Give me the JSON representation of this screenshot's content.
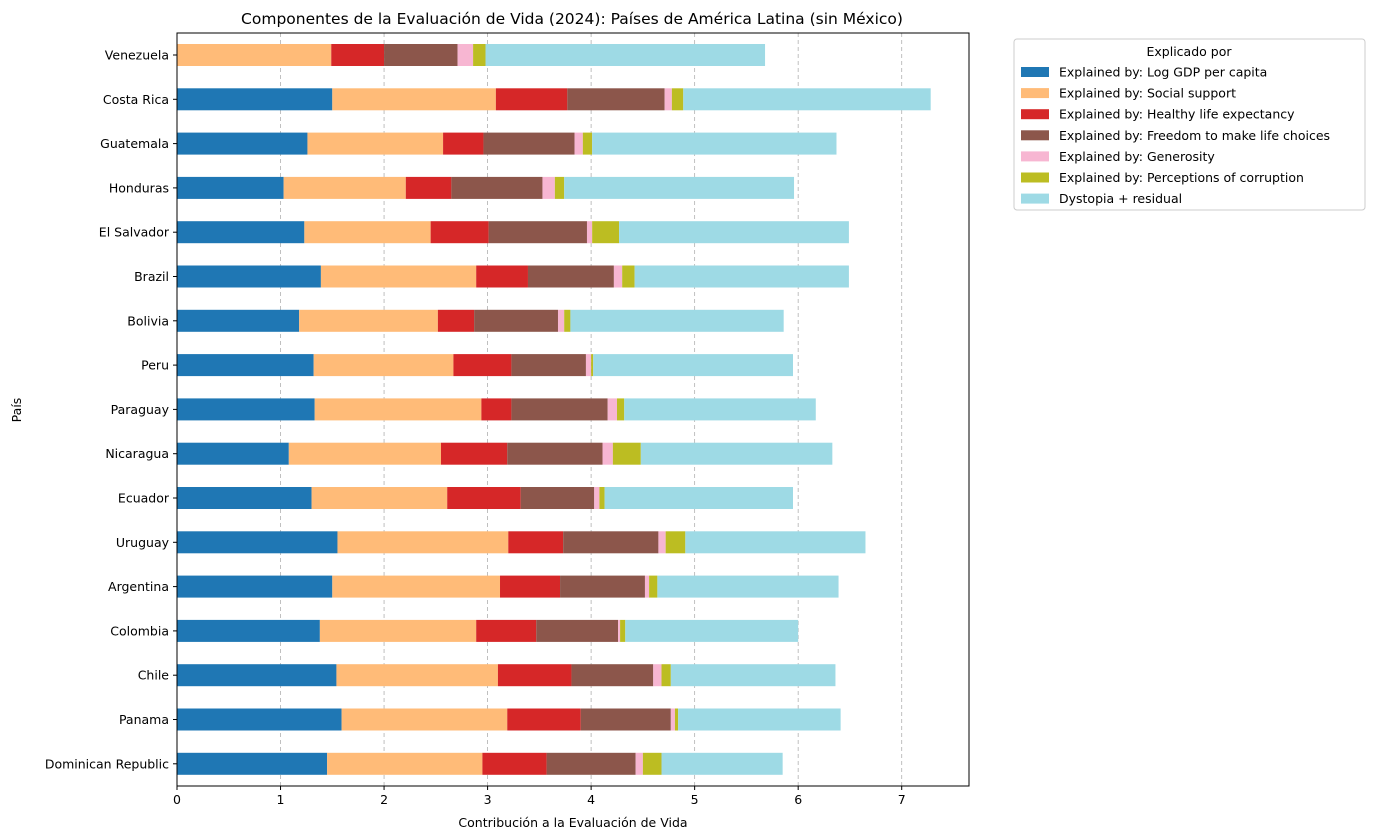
{
  "chart_data": {
    "type": "bar",
    "orientation": "horizontal",
    "stacked": true,
    "title": "Componentes de la Evaluación de Vida (2024): Países de América Latina (sin México)",
    "xlabel": "Contribución a la Evaluación de Vida",
    "ylabel": "País",
    "xlim": [
      0,
      7.65
    ],
    "xticks": [
      "0",
      "1",
      "2",
      "3",
      "4",
      "5",
      "6",
      "7"
    ],
    "grid": "x-dashed",
    "legend": {
      "title": "Explicado por",
      "placement": "outside-top-right"
    },
    "categories": [
      "Venezuela",
      "Costa Rica",
      "Guatemala",
      "Honduras",
      "El Salvador",
      "Brazil",
      "Bolivia",
      "Peru",
      "Paraguay",
      "Nicaragua",
      "Ecuador",
      "Uruguay",
      "Argentina",
      "Colombia",
      "Chile",
      "Panama",
      "Dominican Republic"
    ],
    "series": [
      {
        "name": "Explained by: Log GDP per capita",
        "color": "#1f77b4",
        "values": [
          0.0,
          1.5,
          1.26,
          1.03,
          1.23,
          1.39,
          1.18,
          1.32,
          1.33,
          1.08,
          1.3,
          1.55,
          1.5,
          1.38,
          1.54,
          1.59,
          1.45
        ]
      },
      {
        "name": "Explained by: Social support",
        "color": "#ffbb78",
        "values": [
          1.49,
          1.58,
          1.31,
          1.18,
          1.22,
          1.5,
          1.34,
          1.35,
          1.61,
          1.47,
          1.31,
          1.65,
          1.62,
          1.51,
          1.56,
          1.6,
          1.5
        ]
      },
      {
        "name": "Explained by: Healthy life expectancy",
        "color": "#d62728",
        "values": [
          0.51,
          0.69,
          0.39,
          0.44,
          0.56,
          0.5,
          0.35,
          0.56,
          0.29,
          0.64,
          0.71,
          0.53,
          0.58,
          0.58,
          0.71,
          0.71,
          0.62
        ]
      },
      {
        "name": "Explained by: Freedom to make life choices",
        "color": "#8c564b",
        "values": [
          0.71,
          0.94,
          0.88,
          0.88,
          0.95,
          0.83,
          0.81,
          0.72,
          0.93,
          0.92,
          0.71,
          0.92,
          0.82,
          0.79,
          0.79,
          0.87,
          0.86
        ]
      },
      {
        "name": "Explained by: Generosity",
        "color": "#f7b6d2",
        "values": [
          0.15,
          0.07,
          0.08,
          0.12,
          0.05,
          0.08,
          0.06,
          0.05,
          0.09,
          0.1,
          0.05,
          0.07,
          0.04,
          0.02,
          0.08,
          0.04,
          0.07
        ]
      },
      {
        "name": "Explained by: Perceptions of corruption",
        "color": "#bcbd22",
        "values": [
          0.12,
          0.11,
          0.09,
          0.09,
          0.26,
          0.12,
          0.06,
          0.02,
          0.07,
          0.27,
          0.05,
          0.19,
          0.08,
          0.05,
          0.09,
          0.03,
          0.18
        ]
      },
      {
        "name": "Dystopia + residual",
        "color": "#9edae5",
        "values": [
          2.7,
          2.39,
          2.36,
          2.22,
          2.22,
          2.07,
          2.06,
          1.93,
          1.85,
          1.85,
          1.82,
          1.74,
          1.75,
          1.67,
          1.59,
          1.57,
          1.17
        ]
      }
    ]
  }
}
